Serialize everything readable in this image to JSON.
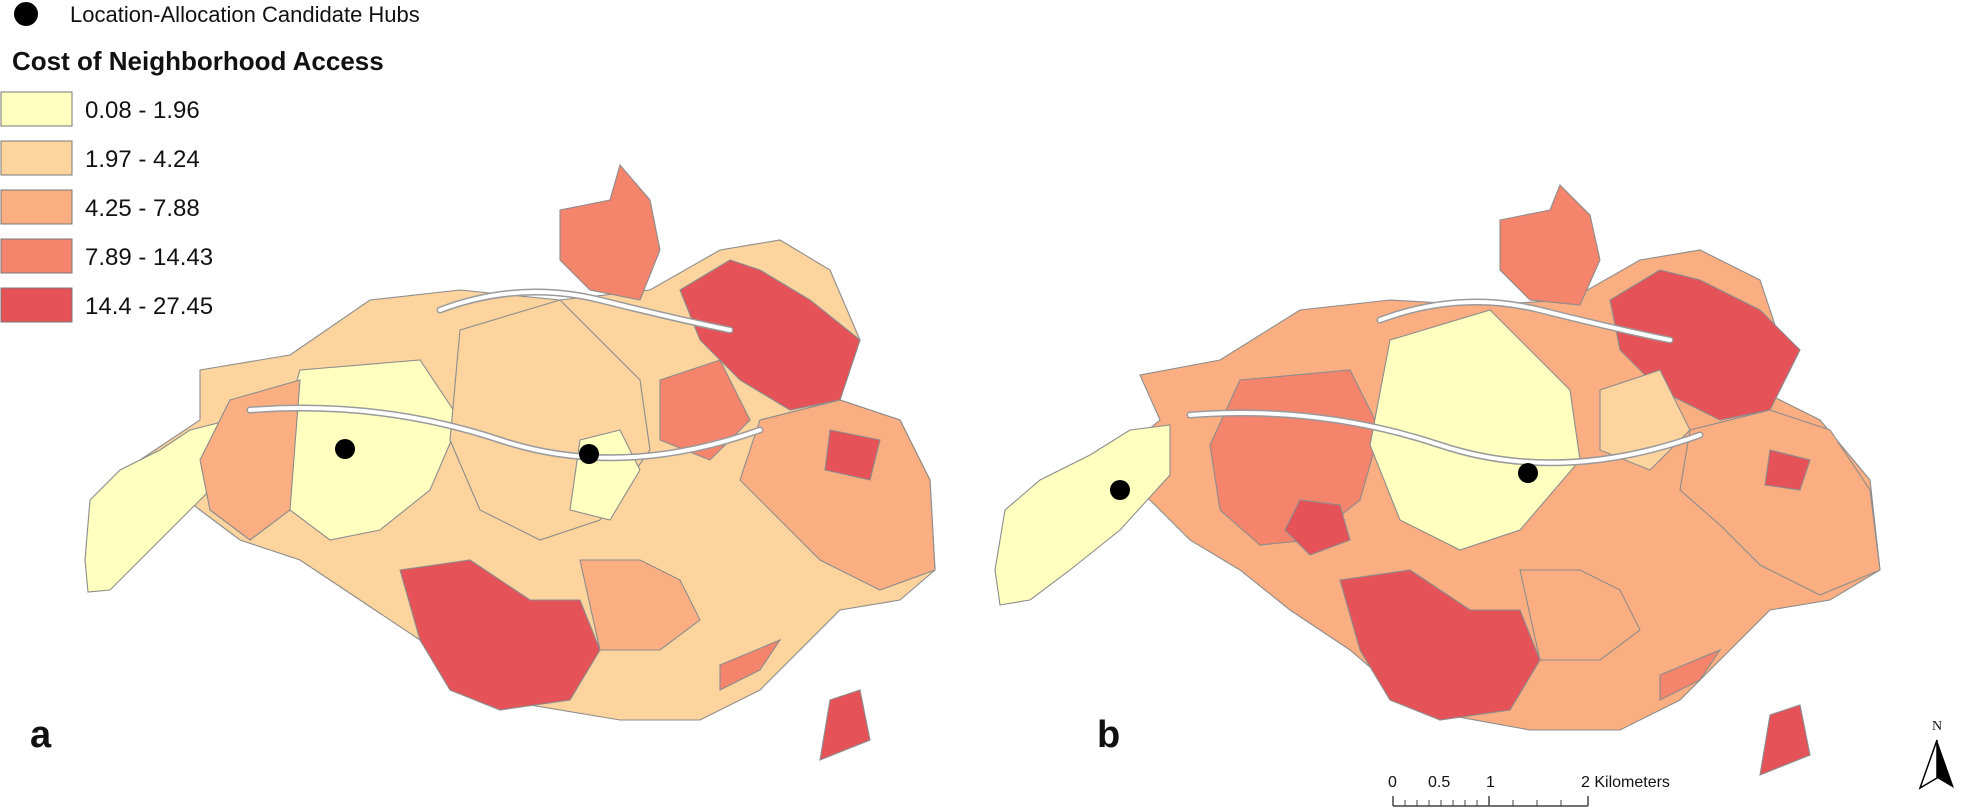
{
  "legend": {
    "hub_label": "Location-Allocation Candidate Hubs",
    "title": "Cost of Neighborhood Access",
    "classes": [
      {
        "label": "0.08 - 1.96",
        "color": "#ffffbf"
      },
      {
        "label": "1.97 - 4.24",
        "color": "#fdd49e"
      },
      {
        "label": "4.25 - 7.88",
        "color": "#fbae82"
      },
      {
        "label": "7.89 - 14.43",
        "color": "#f4846c"
      },
      {
        "label": "14.4 - 27.45",
        "color": "#e55257"
      }
    ]
  },
  "panels": [
    {
      "label": "a",
      "hub_count": 2
    },
    {
      "label": "b",
      "hub_count": 2
    }
  ],
  "scale_bar": {
    "ticks": [
      "0",
      "0.5",
      "1",
      "2 Kilometers"
    ]
  },
  "north_arrow": {
    "letter": "N"
  },
  "colors": {
    "hub": "#000000",
    "outline": "#8c8c8c"
  }
}
